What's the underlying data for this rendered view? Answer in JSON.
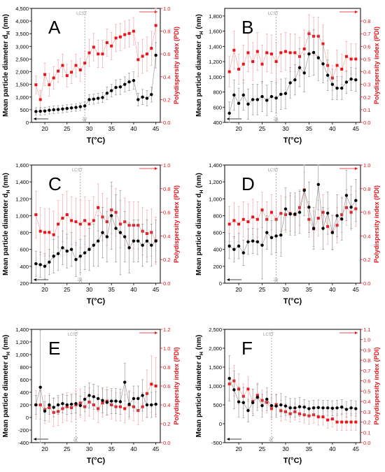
{
  "colors": {
    "diameter": "#000000",
    "pdi": "#e8141c",
    "pdi_err": "#f29a9a",
    "dia_err": "#8a8a8a",
    "lcst": "#9a9a9a"
  },
  "common": {
    "xlabel": "T(°C)",
    "ylabel_left": "Mean particle diameter d",
    "ylabel_left_sub": "H",
    "ylabel_left_unit": " (nm)",
    "ylabel_right": "Polydispersity index (PDI)",
    "lcst_label": "LCST"
  },
  "chart_data": [
    {
      "panel": "A",
      "type": "scatter",
      "lcst": 29,
      "lcst_tick": "29",
      "xlim": [
        17,
        46
      ],
      "xticks": [
        20,
        25,
        30,
        35,
        40,
        45
      ],
      "ylim_left": [
        0,
        4500
      ],
      "yticks_left": [
        0,
        500,
        1000,
        1500,
        2000,
        2500,
        3000,
        3500,
        4000,
        4500
      ],
      "yticklabels_left": [
        "0",
        "500",
        "1,000",
        "1,500",
        "2,000",
        "2,500",
        "3,000",
        "3,500",
        "4,000",
        "4,500"
      ],
      "ylim_right": [
        0,
        1.0
      ],
      "yticks_right": [
        0.0,
        0.2,
        0.4,
        0.6,
        0.8,
        1.0
      ],
      "yticklabels_right": [
        "0.0",
        "0.2",
        "0.4",
        "0.6",
        "0.8",
        "1.0"
      ],
      "x": [
        18,
        19,
        20,
        21,
        22,
        23,
        24,
        25,
        26,
        27,
        28,
        29,
        30,
        31,
        32,
        33,
        34,
        35,
        36,
        37,
        38,
        39,
        40,
        41,
        42,
        43,
        44,
        45
      ],
      "diameter": [
        430,
        440,
        450,
        480,
        500,
        510,
        530,
        550,
        570,
        590,
        620,
        650,
        900,
        920,
        950,
        980,
        1150,
        1250,
        1380,
        1400,
        1500,
        1600,
        1650,
        900,
        1000,
        950,
        1100,
        2650
      ],
      "diameter_err": [
        150,
        150,
        150,
        150,
        150,
        150,
        150,
        150,
        150,
        150,
        150,
        150,
        200,
        200,
        200,
        200,
        250,
        250,
        300,
        300,
        300,
        350,
        350,
        250,
        300,
        300,
        300,
        500
      ],
      "pdi": [
        0.33,
        0.2,
        0.42,
        0.33,
        0.39,
        0.45,
        0.5,
        0.41,
        0.44,
        0.5,
        0.46,
        0.52,
        0.61,
        0.66,
        0.6,
        0.6,
        0.7,
        0.67,
        0.74,
        0.75,
        0.77,
        0.78,
        0.8,
        0.55,
        0.58,
        0.6,
        0.65,
        0.85
      ],
      "pdi_err": [
        0.08,
        0.08,
        0.1,
        0.1,
        0.1,
        0.1,
        0.1,
        0.1,
        0.1,
        0.1,
        0.1,
        0.1,
        0.12,
        0.12,
        0.12,
        0.12,
        0.12,
        0.12,
        0.12,
        0.12,
        0.12,
        0.12,
        0.12,
        0.15,
        0.15,
        0.15,
        0.15,
        0.15
      ]
    },
    {
      "panel": "B",
      "type": "scatter",
      "lcst": 28,
      "lcst_tick": "28",
      "xlim": [
        17,
        46
      ],
      "xticks": [
        20,
        25,
        30,
        35,
        40,
        45
      ],
      "ylim_left": [
        400,
        1900
      ],
      "yticks_left": [
        400,
        600,
        800,
        1000,
        1200,
        1400,
        1600,
        1800
      ],
      "yticklabels_left": [
        "400",
        "600",
        "800",
        "1,000",
        "1,200",
        "1,400",
        "1,600",
        "1,800"
      ],
      "ylim_right": [
        0,
        0.9
      ],
      "yticks_right": [
        0.0,
        0.1,
        0.2,
        0.3,
        0.4,
        0.5,
        0.6,
        0.7,
        0.8
      ],
      "yticklabels_right": [
        "0.0",
        "0.1",
        "0.2",
        "0.3",
        "0.4",
        "0.5",
        "0.6",
        "0.7",
        "0.8"
      ],
      "x": [
        18,
        19,
        20,
        21,
        22,
        23,
        24,
        25,
        26,
        27,
        28,
        29,
        30,
        31,
        32,
        33,
        34,
        35,
        36,
        37,
        38,
        39,
        40,
        41,
        42,
        43,
        44,
        45
      ],
      "diameter": [
        520,
        760,
        650,
        760,
        640,
        700,
        700,
        740,
        690,
        740,
        720,
        770,
        780,
        920,
        960,
        1120,
        1050,
        1300,
        1320,
        1250,
        1170,
        1020,
        900,
        850,
        850,
        930,
        970,
        960
      ],
      "diameter_err": [
        150,
        200,
        200,
        200,
        200,
        200,
        200,
        200,
        200,
        200,
        200,
        200,
        200,
        200,
        200,
        250,
        250,
        300,
        300,
        300,
        250,
        200,
        200,
        150,
        150,
        150,
        150,
        150
      ],
      "pdi": [
        0.4,
        0.57,
        0.42,
        0.46,
        0.55,
        0.48,
        0.56,
        0.46,
        0.55,
        0.54,
        0.48,
        0.55,
        0.56,
        0.55,
        0.55,
        0.52,
        0.58,
        0.7,
        0.68,
        0.68,
        0.62,
        0.45,
        0.35,
        0.45,
        0.42,
        0.52,
        0.5,
        0.5
      ],
      "pdi_err": [
        0.12,
        0.15,
        0.12,
        0.15,
        0.15,
        0.15,
        0.15,
        0.15,
        0.15,
        0.15,
        0.15,
        0.15,
        0.15,
        0.15,
        0.15,
        0.15,
        0.15,
        0.15,
        0.15,
        0.15,
        0.15,
        0.12,
        0.1,
        0.12,
        0.12,
        0.12,
        0.12,
        0.12
      ]
    },
    {
      "panel": "C",
      "type": "scatter",
      "lcst": 28,
      "lcst_tick": "28",
      "xlim": [
        17,
        46
      ],
      "xticks": [
        20,
        25,
        30,
        35,
        40,
        45
      ],
      "ylim_left": [
        200,
        1600
      ],
      "yticks_left": [
        200,
        400,
        600,
        800,
        1000,
        1200,
        1400,
        1600
      ],
      "yticklabels_left": [
        "200",
        "400",
        "600",
        "800",
        "1,000",
        "1,200",
        "1,400",
        "1,600"
      ],
      "ylim_right": [
        0,
        1.0
      ],
      "yticks_right": [
        0.0,
        0.2,
        0.4,
        0.6,
        0.8,
        1.0
      ],
      "yticklabels_right": [
        "0.0",
        "0.2",
        "0.4",
        "0.6",
        "0.8",
        "1.0"
      ],
      "x": [
        18,
        19,
        20,
        21,
        22,
        23,
        24,
        25,
        26,
        27,
        28,
        29,
        30,
        31,
        32,
        33,
        34,
        35,
        36,
        37,
        38,
        39,
        40,
        41,
        42,
        43,
        44,
        45
      ],
      "diameter": [
        430,
        420,
        400,
        450,
        520,
        550,
        620,
        580,
        600,
        480,
        520,
        560,
        600,
        650,
        700,
        800,
        750,
        1000,
        850,
        800,
        750,
        620,
        700,
        700,
        650,
        700,
        650,
        700
      ],
      "diameter_err": [
        150,
        150,
        150,
        150,
        200,
        200,
        200,
        200,
        200,
        200,
        200,
        200,
        250,
        250,
        300,
        300,
        300,
        400,
        400,
        500,
        300,
        300,
        250,
        250,
        250,
        250,
        250,
        250
      ],
      "pdi": [
        0.58,
        0.44,
        0.43,
        0.43,
        0.41,
        0.5,
        0.55,
        0.58,
        0.53,
        0.52,
        0.5,
        0.53,
        0.5,
        0.53,
        0.64,
        0.56,
        0.52,
        0.62,
        0.6,
        0.5,
        0.52,
        0.49,
        0.49,
        0.49,
        0.44,
        0.42,
        0.43,
        0.36
      ],
      "pdi_err": [
        0.2,
        0.2,
        0.2,
        0.2,
        0.2,
        0.2,
        0.2,
        0.2,
        0.2,
        0.2,
        0.2,
        0.2,
        0.2,
        0.2,
        0.2,
        0.2,
        0.2,
        0.2,
        0.2,
        0.2,
        0.2,
        0.2,
        0.2,
        0.2,
        0.2,
        0.2,
        0.2,
        0.2
      ]
    },
    {
      "panel": "D",
      "type": "scatter",
      "lcst": 28,
      "lcst_tick": "28",
      "xlim": [
        17,
        46
      ],
      "xticks": [
        20,
        25,
        30,
        35,
        40,
        45
      ],
      "ylim_left": [
        0,
        1400
      ],
      "yticks_left": [
        0,
        200,
        400,
        600,
        800,
        1000,
        1200,
        1400
      ],
      "yticklabels_left": [
        "0",
        "200",
        "400",
        "600",
        "800",
        "1,000",
        "1,200",
        "1,400"
      ],
      "ylim_right": [
        0,
        1.0
      ],
      "yticks_right": [
        0.0,
        0.2,
        0.4,
        0.6,
        0.8,
        1.0
      ],
      "yticklabels_right": [
        "0.0",
        "0.2",
        "0.4",
        "0.6",
        "0.8",
        "1.0"
      ],
      "x": [
        18,
        19,
        20,
        21,
        22,
        23,
        24,
        25,
        26,
        27,
        28,
        29,
        30,
        31,
        32,
        33,
        34,
        35,
        36,
        37,
        38,
        39,
        40,
        41,
        42,
        43,
        44,
        45
      ],
      "diameter": [
        440,
        400,
        440,
        360,
        490,
        500,
        490,
        450,
        600,
        540,
        560,
        570,
        880,
        820,
        820,
        840,
        1100,
        900,
        650,
        1170,
        650,
        830,
        600,
        800,
        760,
        1040,
        900,
        980
      ],
      "diameter_err": [
        150,
        150,
        150,
        150,
        150,
        150,
        150,
        400,
        200,
        200,
        200,
        250,
        250,
        250,
        250,
        250,
        300,
        300,
        250,
        300,
        250,
        250,
        200,
        250,
        250,
        300,
        250,
        250
      ],
      "pdi": [
        0.5,
        0.53,
        0.5,
        0.54,
        0.52,
        0.56,
        0.54,
        0.62,
        0.54,
        0.6,
        0.54,
        0.59,
        0.58,
        0.59,
        0.58,
        0.64,
        0.79,
        0.54,
        0.46,
        0.55,
        0.6,
        0.48,
        0.43,
        0.49,
        0.58,
        0.64,
        0.6,
        0.63
      ],
      "pdi_err": [
        0.15,
        0.15,
        0.15,
        0.15,
        0.15,
        0.15,
        0.15,
        0.15,
        0.15,
        0.15,
        0.15,
        0.15,
        0.15,
        0.15,
        0.15,
        0.15,
        0.15,
        0.15,
        0.15,
        0.15,
        0.15,
        0.15,
        0.15,
        0.15,
        0.15,
        0.15,
        0.15,
        0.15
      ]
    },
    {
      "panel": "E",
      "type": "scatter",
      "lcst": 27,
      "lcst_tick": "27",
      "xlim": [
        17,
        46
      ],
      "xticks": [
        20,
        25,
        30,
        35,
        40,
        45
      ],
      "ylim_left": [
        -400,
        1400
      ],
      "yticks_left": [
        -400,
        -200,
        0,
        200,
        400,
        600,
        800,
        1000,
        1200,
        1400
      ],
      "yticklabels_left": [
        "-400",
        "-200",
        "0",
        "200",
        "400",
        "600",
        "800",
        "1,000",
        "1,200",
        "1,400"
      ],
      "ylim_right": [
        0,
        1.2
      ],
      "yticks_right": [
        0.0,
        0.2,
        0.4,
        0.6,
        0.8,
        1.0,
        1.2
      ],
      "yticklabels_right": [
        "0.0",
        "0.2",
        "0.4",
        "0.6",
        "0.8",
        "1.0",
        "1.2"
      ],
      "x": [
        18,
        19,
        20,
        21,
        22,
        23,
        24,
        25,
        26,
        27,
        28,
        29,
        30,
        31,
        32,
        33,
        34,
        35,
        36,
        37,
        38,
        39,
        40,
        41,
        42,
        43,
        44,
        45
      ],
      "diameter": [
        200,
        480,
        100,
        200,
        160,
        200,
        220,
        200,
        210,
        220,
        190,
        290,
        350,
        330,
        300,
        270,
        240,
        260,
        260,
        250,
        560,
        210,
        300,
        300,
        350,
        200,
        200,
        210
      ],
      "diameter_err": [
        150,
        900,
        150,
        150,
        150,
        150,
        150,
        150,
        150,
        150,
        150,
        200,
        200,
        200,
        200,
        200,
        200,
        200,
        200,
        200,
        300,
        200,
        200,
        200,
        250,
        200,
        200,
        200
      ],
      "pdi": [
        0.4,
        0.4,
        0.35,
        0.37,
        0.32,
        0.33,
        0.36,
        0.38,
        0.37,
        0.4,
        0.42,
        0.38,
        0.43,
        0.4,
        0.36,
        0.42,
        0.44,
        0.4,
        0.38,
        0.38,
        0.36,
        0.4,
        0.38,
        0.34,
        0.38,
        0.52,
        0.62,
        0.6
      ],
      "pdi_err": [
        0.15,
        0.15,
        0.15,
        0.15,
        0.15,
        0.15,
        0.15,
        0.15,
        0.15,
        0.15,
        0.15,
        0.15,
        0.15,
        0.15,
        0.15,
        0.15,
        0.15,
        0.15,
        0.15,
        0.15,
        0.15,
        0.15,
        0.15,
        0.15,
        0.15,
        0.25,
        0.3,
        0.3
      ]
    },
    {
      "panel": "F",
      "type": "scatter",
      "lcst": 27,
      "lcst_tick": "27",
      "xlim": [
        17,
        46
      ],
      "xticks": [
        20,
        25,
        30,
        35,
        40,
        45
      ],
      "ylim_left": [
        -500,
        2500
      ],
      "yticks_left": [
        -500,
        0,
        500,
        1000,
        1500,
        2000,
        2500
      ],
      "yticklabels_left": [
        "-500",
        "0",
        "500",
        "1,000",
        "1,500",
        "2,000",
        "2,500"
      ],
      "ylim_right": [
        0,
        1.1
      ],
      "yticks_right": [
        0.0,
        0.1,
        0.2,
        0.3,
        0.4,
        0.5,
        0.6,
        0.7,
        0.8,
        0.9,
        1.0,
        1.1
      ],
      "yticklabels_right": [
        "0.0",
        "0.1",
        "0.2",
        "0.3",
        "0.4",
        "0.5",
        "0.6",
        "0.7",
        "0.8",
        "0.9",
        "1.0",
        "1.1"
      ],
      "x": [
        18,
        19,
        20,
        21,
        22,
        23,
        24,
        25,
        26,
        27,
        28,
        29,
        30,
        31,
        32,
        33,
        34,
        35,
        36,
        37,
        38,
        39,
        40,
        41,
        42,
        43,
        44,
        45
      ],
      "diameter": [
        1200,
        900,
        580,
        560,
        350,
        560,
        700,
        480,
        650,
        480,
        470,
        500,
        470,
        420,
        420,
        450,
        440,
        400,
        420,
        430,
        420,
        420,
        410,
        420,
        440,
        380,
        420,
        400
      ],
      "diameter_err": [
        600,
        500,
        400,
        400,
        300,
        350,
        350,
        300,
        300,
        300,
        300,
        300,
        250,
        250,
        250,
        250,
        200,
        200,
        200,
        200,
        200,
        200,
        200,
        200,
        200,
        200,
        200,
        200
      ],
      "pdi": [
        0.57,
        0.6,
        0.52,
        0.45,
        0.52,
        0.4,
        0.46,
        0.41,
        0.39,
        0.33,
        0.37,
        0.31,
        0.3,
        0.28,
        0.3,
        0.28,
        0.27,
        0.26,
        0.27,
        0.25,
        0.25,
        0.22,
        0.23,
        0.2,
        0.2,
        0.2,
        0.2,
        0.2
      ],
      "pdi_err": [
        0.15,
        0.15,
        0.15,
        0.12,
        0.12,
        0.12,
        0.12,
        0.1,
        0.1,
        0.1,
        0.1,
        0.1,
        0.08,
        0.08,
        0.08,
        0.08,
        0.08,
        0.08,
        0.08,
        0.08,
        0.08,
        0.08,
        0.08,
        0.08,
        0.08,
        0.08,
        0.08,
        0.08
      ]
    }
  ]
}
